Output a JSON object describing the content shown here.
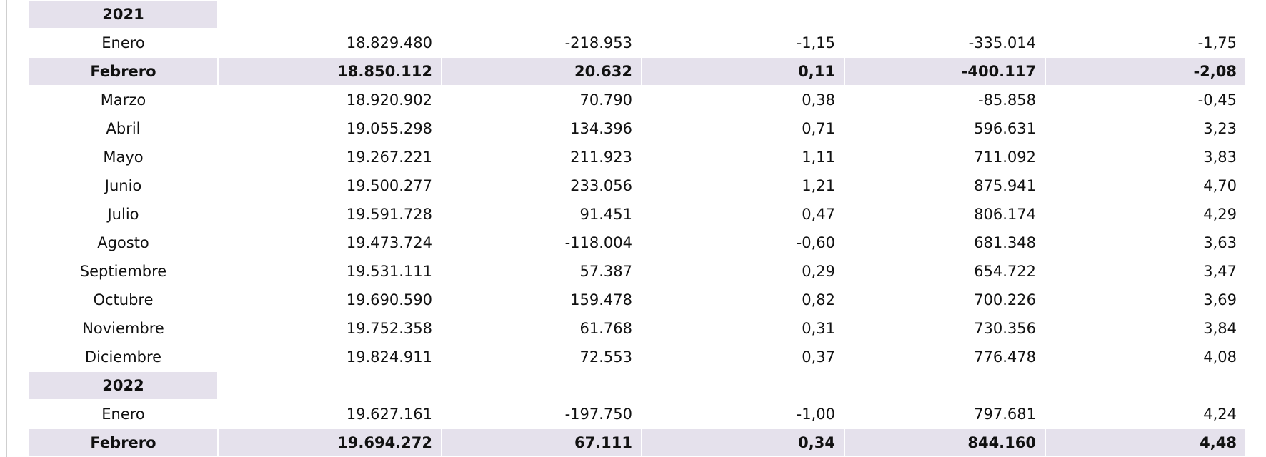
{
  "sections": [
    {
      "year": "2021",
      "rows": [
        {
          "cells": [
            "Enero",
            "18.829.480",
            "-218.953",
            "-1,15",
            "-335.014",
            "-1,75"
          ]
        },
        {
          "cells": [
            "Febrero",
            "18.850.112",
            "20.632",
            "0,11",
            "-400.117",
            "-2,08"
          ],
          "highlight": true
        },
        {
          "cells": [
            "Marzo",
            "18.920.902",
            "70.790",
            "0,38",
            "-85.858",
            "-0,45"
          ]
        },
        {
          "cells": [
            "Abril",
            "19.055.298",
            "134.396",
            "0,71",
            "596.631",
            "3,23"
          ]
        },
        {
          "cells": [
            "Mayo",
            "19.267.221",
            "211.923",
            "1,11",
            "711.092",
            "3,83"
          ]
        },
        {
          "cells": [
            "Junio",
            "19.500.277",
            "233.056",
            "1,21",
            "875.941",
            "4,70"
          ]
        },
        {
          "cells": [
            "Julio",
            "19.591.728",
            "91.451",
            "0,47",
            "806.174",
            "4,29"
          ]
        },
        {
          "cells": [
            "Agosto",
            "19.473.724",
            "-118.004",
            "-0,60",
            "681.348",
            "3,63"
          ]
        },
        {
          "cells": [
            "Septiembre",
            "19.531.111",
            "57.387",
            "0,29",
            "654.722",
            "3,47"
          ]
        },
        {
          "cells": [
            "Octubre",
            "19.690.590",
            "159.478",
            "0,82",
            "700.226",
            "3,69"
          ]
        },
        {
          "cells": [
            "Noviembre",
            "19.752.358",
            "61.768",
            "0,31",
            "730.356",
            "3,84"
          ]
        },
        {
          "cells": [
            "Diciembre",
            "19.824.911",
            "72.553",
            "0,37",
            "776.478",
            "4,08"
          ]
        }
      ]
    },
    {
      "year": "2022",
      "rows": [
        {
          "cells": [
            "Enero",
            "19.627.161",
            "-197.750",
            "-1,00",
            "797.681",
            "4,24"
          ]
        },
        {
          "cells": [
            "Febrero",
            "19.694.272",
            "67.111",
            "0,34",
            "844.160",
            "4,48"
          ],
          "highlight": true
        }
      ]
    }
  ]
}
